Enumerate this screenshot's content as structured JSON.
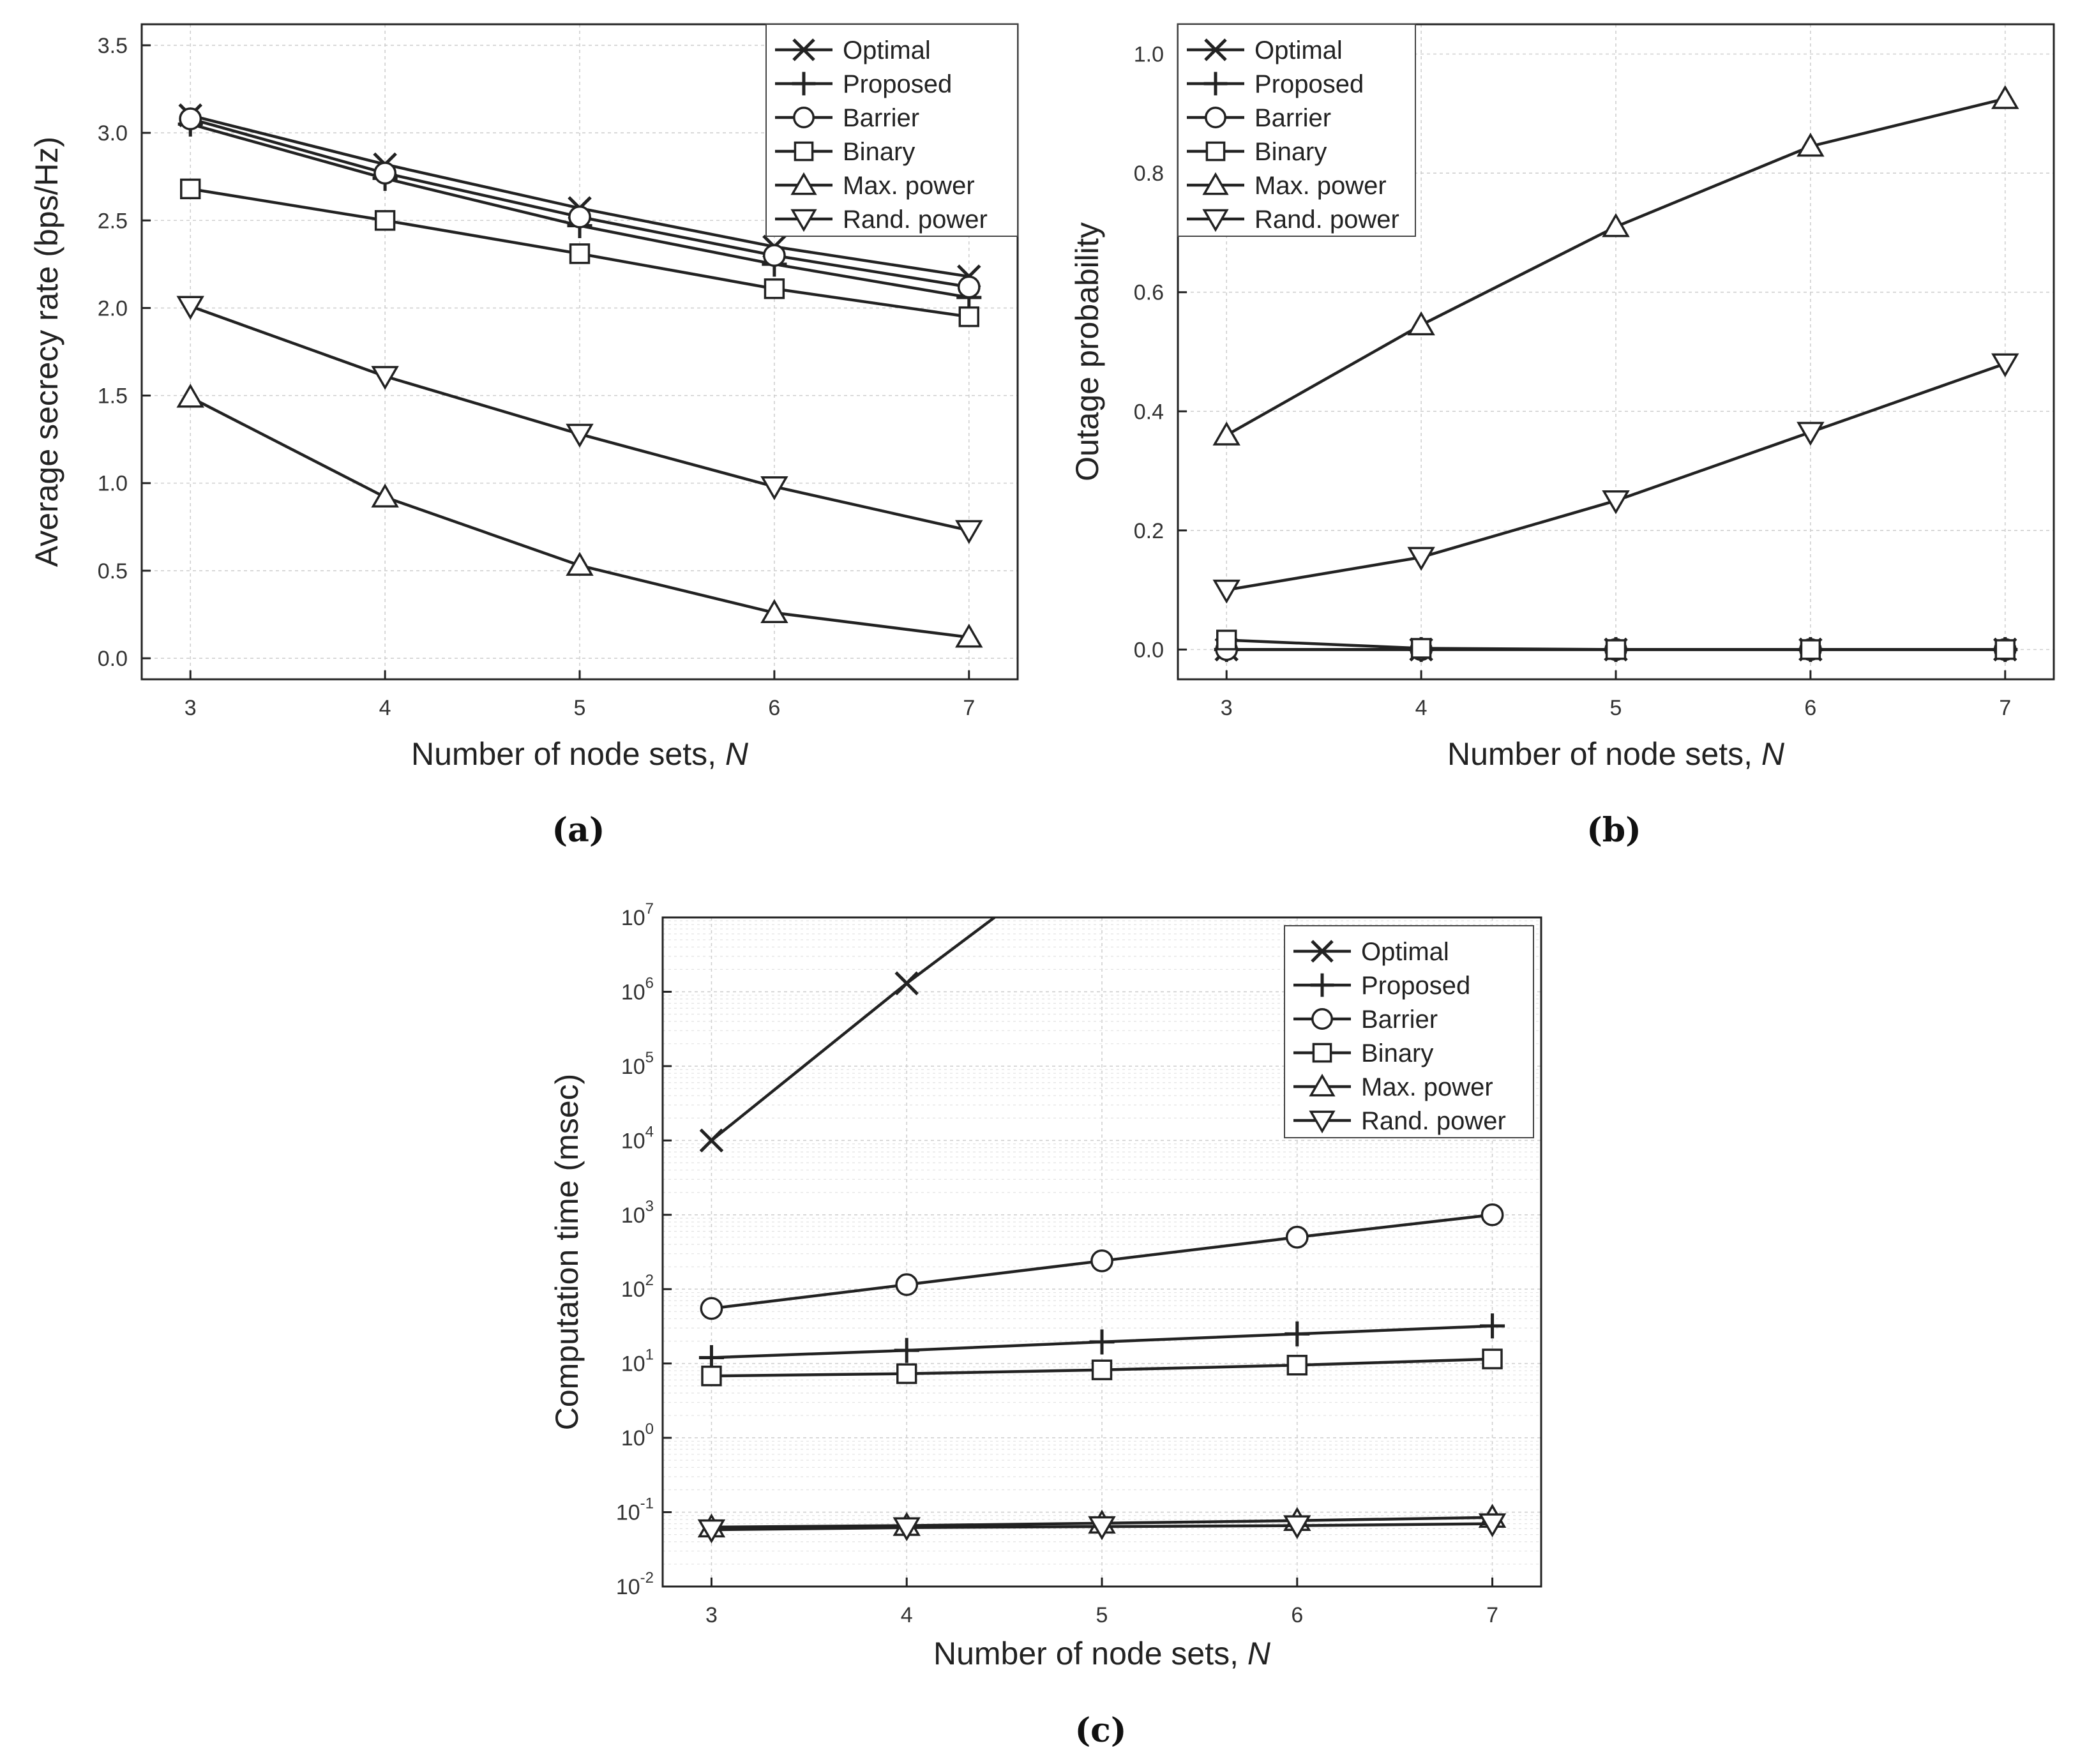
{
  "chart_data": [
    {
      "id": "a",
      "type": "line",
      "caption": "(a)",
      "xlabel": "Number of node sets, N",
      "ylabel": "Average secrecy rate (bps/Hz)",
      "x": [
        3,
        4,
        5,
        6,
        7
      ],
      "xlim": [
        2.75,
        7.25
      ],
      "ylim": [
        -0.12,
        3.62
      ],
      "yscale": "linear",
      "xticks": [
        3,
        4,
        5,
        6,
        7
      ],
      "yticks": [
        0.0,
        0.5,
        1.0,
        1.5,
        2.0,
        2.5,
        3.0,
        3.5
      ],
      "ytick_labels": [
        "0.0",
        "0.5",
        "1.0",
        "1.5",
        "2.0",
        "2.5",
        "3.0",
        "3.5"
      ],
      "legend_position": "top-right",
      "series": [
        {
          "name": "Optimal",
          "marker": "x",
          "values": [
            3.1,
            2.82,
            2.57,
            2.35,
            2.18
          ]
        },
        {
          "name": "Proposed",
          "marker": "plus",
          "values": [
            3.05,
            2.74,
            2.47,
            2.25,
            2.06
          ]
        },
        {
          "name": "Barrier",
          "marker": "circle",
          "values": [
            3.08,
            2.77,
            2.52,
            2.3,
            2.12
          ]
        },
        {
          "name": "Binary",
          "marker": "square",
          "values": [
            2.68,
            2.5,
            2.31,
            2.11,
            1.95
          ]
        },
        {
          "name": "Max. power",
          "marker": "triangle-up",
          "values": [
            1.49,
            0.92,
            0.53,
            0.26,
            0.12
          ]
        },
        {
          "name": "Rand. power",
          "marker": "triangle-down",
          "values": [
            2.01,
            1.61,
            1.28,
            0.98,
            0.73
          ]
        }
      ]
    },
    {
      "id": "b",
      "type": "line",
      "caption": "(b)",
      "xlabel": "Number of node sets, N",
      "ylabel": "Outage probability",
      "x": [
        3,
        4,
        5,
        6,
        7
      ],
      "xlim": [
        2.75,
        7.25
      ],
      "ylim": [
        -0.05,
        1.05
      ],
      "yscale": "linear",
      "xticks": [
        3,
        4,
        5,
        6,
        7
      ],
      "yticks": [
        0.0,
        0.2,
        0.4,
        0.6,
        0.8,
        1.0
      ],
      "ytick_labels": [
        "0.0",
        "0.2",
        "0.4",
        "0.6",
        "0.8",
        "1.0"
      ],
      "legend_position": "top-left",
      "series": [
        {
          "name": "Optimal",
          "marker": "x",
          "values": [
            0.0,
            0.0,
            0.0,
            0.0,
            0.0
          ]
        },
        {
          "name": "Proposed",
          "marker": "plus",
          "values": [
            0.0,
            0.0,
            0.0,
            0.0,
            0.0
          ]
        },
        {
          "name": "Barrier",
          "marker": "circle",
          "values": [
            0.0,
            0.0,
            0.0,
            0.0,
            0.0
          ]
        },
        {
          "name": "Binary",
          "marker": "square",
          "values": [
            0.016,
            0.002,
            0.0,
            0.0,
            0.0
          ]
        },
        {
          "name": "Max. power",
          "marker": "triangle-up",
          "values": [
            0.36,
            0.545,
            0.71,
            0.845,
            0.925
          ]
        },
        {
          "name": "Rand. power",
          "marker": "triangle-down",
          "values": [
            0.1,
            0.155,
            0.25,
            0.365,
            0.48
          ]
        }
      ]
    },
    {
      "id": "c",
      "type": "line",
      "caption": "(c)",
      "xlabel": "Number of node sets, N",
      "ylabel": "Computation time (msec)",
      "x": [
        3,
        4,
        5,
        6,
        7
      ],
      "xlim": [
        2.75,
        7.25
      ],
      "ylim_exp": [
        -2,
        7
      ],
      "yscale": "log",
      "xticks": [
        3,
        4,
        5,
        6,
        7
      ],
      "ytick_exponents": [
        -2,
        -1,
        0,
        1,
        2,
        3,
        4,
        5,
        6,
        7
      ],
      "ytick_base": "10",
      "legend_position": "top-right",
      "series": [
        {
          "name": "Optimal",
          "marker": "x",
          "x": [
            3,
            4,
            4.45
          ],
          "values": [
            10000,
            1300000,
            10000000
          ],
          "marker_count": 2
        },
        {
          "name": "Proposed",
          "marker": "plus",
          "values": [
            12,
            15,
            19.5,
            25,
            32
          ]
        },
        {
          "name": "Barrier",
          "marker": "circle",
          "values": [
            55,
            115,
            240,
            500,
            1000
          ]
        },
        {
          "name": "Binary",
          "marker": "square",
          "values": [
            6.8,
            7.3,
            8.2,
            9.5,
            11.5
          ]
        },
        {
          "name": "Max. power",
          "marker": "triangle-up",
          "values": [
            0.063,
            0.066,
            0.071,
            0.077,
            0.085
          ]
        },
        {
          "name": "Rand. power",
          "marker": "triangle-down",
          "values": [
            0.058,
            0.062,
            0.064,
            0.066,
            0.07
          ]
        }
      ]
    }
  ]
}
